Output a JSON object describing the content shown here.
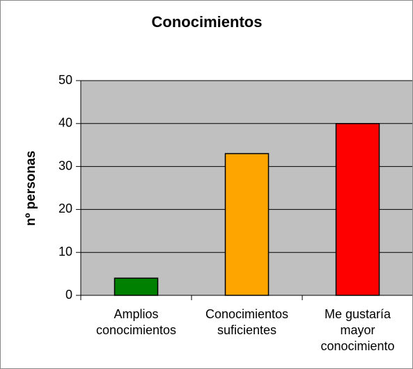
{
  "chart_data": {
    "type": "bar",
    "title": "Conocimientos",
    "y_label": "nº personas",
    "categories": [
      "Amplios conocimientos",
      "Conocimientos suficientes",
      "Me gustaría mayor conocimiento"
    ],
    "values": [
      4,
      33,
      40
    ],
    "colors": [
      "#008000",
      "#ffa500",
      "#ff0000"
    ],
    "ylim": [
      0,
      50
    ],
    "yticks": [
      0,
      10,
      20,
      30,
      40,
      50
    ],
    "grid": true
  }
}
